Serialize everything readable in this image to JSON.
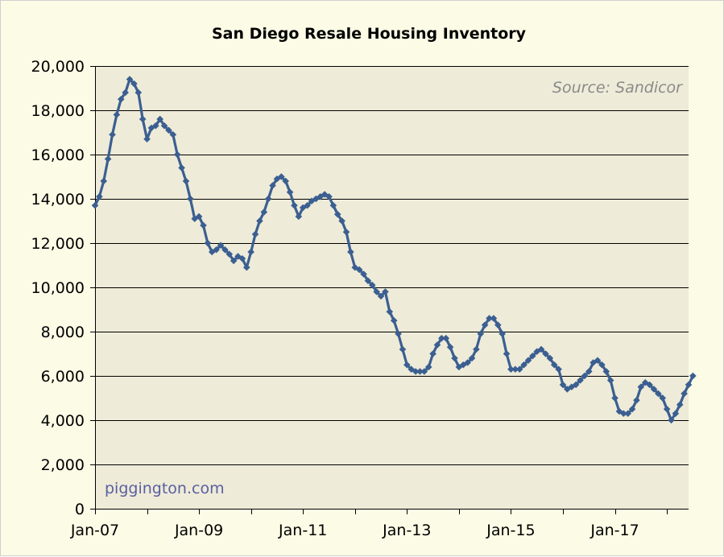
{
  "colors": {
    "plot_background": "#eeebd8",
    "page_background": "#fbfbe6",
    "series_line": "#3b5f91",
    "gridline": "#000000"
  },
  "chart_data": {
    "type": "line",
    "title": "San Diego Resale Housing Inventory",
    "annotation_source": "Source: Sandicor",
    "annotation_watermark": "piggington.com",
    "xlabel": "",
    "ylabel": "",
    "xlim": [
      "2007-01",
      "2018-06"
    ],
    "ylim": [
      0,
      20000
    ],
    "yticks": [
      0,
      2000,
      4000,
      6000,
      8000,
      10000,
      12000,
      14000,
      16000,
      18000,
      20000
    ],
    "ytick_labels": [
      "0",
      "2,000",
      "4,000",
      "6,000",
      "8,000",
      "10,000",
      "12,000",
      "14,000",
      "16,000",
      "18,000",
      "20,000"
    ],
    "xticks": [
      "2007-01",
      "2009-01",
      "2011-01",
      "2013-01",
      "2015-01",
      "2017-01"
    ],
    "xtick_labels": [
      "Jan-07",
      "Jan-09",
      "Jan-11",
      "Jan-13",
      "Jan-15",
      "Jan-17"
    ],
    "grid": "horizontal",
    "marker": "diamond",
    "series": [
      {
        "start": "2007-01",
        "frequency": "monthly",
        "values": [
          13700,
          14100,
          14800,
          15800,
          16900,
          17800,
          18500,
          18800,
          19400,
          19200,
          18800,
          17600,
          16700,
          17200,
          17300,
          17600,
          17300,
          17100,
          16900,
          16000,
          15400,
          14800,
          14000,
          13100,
          13200,
          12800,
          12000,
          11600,
          11700,
          11900,
          11700,
          11500,
          11200,
          11400,
          11300,
          10900,
          11600,
          12400,
          13000,
          13400,
          14000,
          14600,
          14900,
          15000,
          14800,
          14300,
          13700,
          13200,
          13600,
          13700,
          13900,
          14000,
          14100,
          14200,
          14100,
          13700,
          13300,
          13000,
          12500,
          11600,
          10900,
          10800,
          10600,
          10300,
          10100,
          9800,
          9600,
          9800,
          8900,
          8500,
          7900,
          7200,
          6500,
          6300,
          6200,
          6200,
          6200,
          6400,
          7000,
          7400,
          7700,
          7700,
          7300,
          6800,
          6400,
          6500,
          6600,
          6800,
          7200,
          7900,
          8300,
          8600,
          8600,
          8300,
          7900,
          7000,
          6300,
          6300,
          6300,
          6500,
          6700,
          6900,
          7100,
          7200,
          7000,
          6800,
          6500,
          6300,
          5600,
          5400,
          5500,
          5600,
          5800,
          6000,
          6200,
          6600,
          6700,
          6500,
          6200,
          5800,
          5000,
          4400,
          4300,
          4300,
          4500,
          4900,
          5500,
          5700,
          5600,
          5400,
          5200,
          5000,
          4500,
          4000,
          4300,
          4700,
          5200,
          5600,
          6000
        ]
      }
    ]
  }
}
